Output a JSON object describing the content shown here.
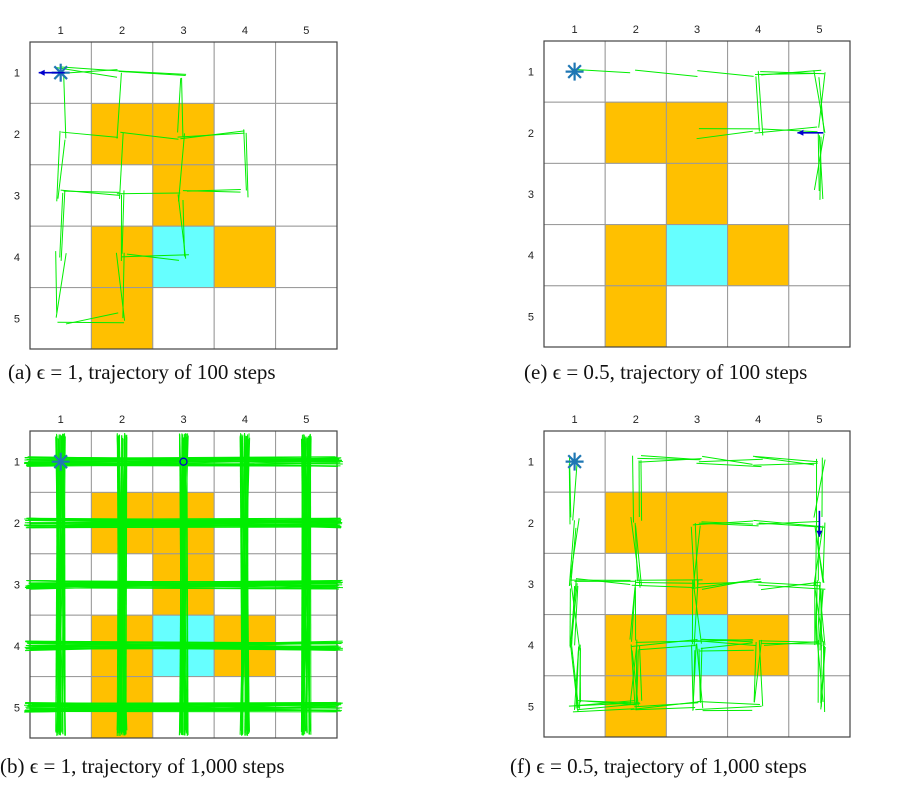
{
  "panels": [
    {
      "id": "a",
      "caption_label": "(a)",
      "caption_text": "ϵ = 1, trajectory of 100 steps",
      "col_labels": [
        "1",
        "2",
        "3",
        "4",
        "5"
      ],
      "row_labels": [
        "1",
        "2",
        "3",
        "4",
        "5"
      ],
      "colors": {
        "obstacle": "#FFC000",
        "goal": "#66FFFF",
        "trajectory": "#00EE00",
        "marker": "#1F77B4",
        "arrow": "#0000CC"
      },
      "grid": {
        "obstacles": [
          [
            2,
            2
          ],
          [
            2,
            3
          ],
          [
            3,
            3
          ],
          [
            4,
            2
          ],
          [
            4,
            4
          ],
          [
            5,
            2
          ]
        ],
        "goal": [
          4,
          3
        ],
        "start": [
          1,
          1
        ],
        "end_marker": "arrow",
        "end_cell": [
          1,
          1
        ],
        "end_direction": "left"
      },
      "trajectory_density": "sparse",
      "trajectory_path": [
        [
          1,
          1
        ],
        [
          1,
          2
        ],
        [
          2,
          2
        ],
        [
          3,
          2
        ],
        [
          4,
          2
        ],
        [
          5,
          2
        ],
        [
          5,
          1
        ],
        [
          4,
          1
        ],
        [
          3,
          1
        ],
        [
          2,
          1
        ],
        [
          2,
          2
        ],
        [
          2,
          3
        ],
        [
          2,
          4
        ],
        [
          3,
          4
        ],
        [
          3,
          3
        ],
        [
          4,
          3
        ],
        [
          4,
          2
        ],
        [
          3,
          2
        ],
        [
          3,
          1
        ],
        [
          2,
          1
        ],
        [
          1,
          1
        ],
        [
          1,
          2
        ],
        [
          1,
          3
        ],
        [
          2,
          3
        ],
        [
          3,
          3
        ],
        [
          4,
          3
        ],
        [
          4,
          2
        ],
        [
          5,
          2
        ],
        [
          5,
          1
        ],
        [
          4,
          1
        ],
        [
          3,
          1
        ],
        [
          3,
          2
        ],
        [
          3,
          3
        ],
        [
          3,
          4
        ],
        [
          2,
          4
        ],
        [
          2,
          3
        ],
        [
          1,
          3
        ],
        [
          1,
          2
        ],
        [
          1,
          1
        ]
      ]
    },
    {
      "id": "e",
      "caption_label": "(e)",
      "caption_text": "ϵ = 0.5, trajectory of 100 steps",
      "col_labels": [
        "1",
        "2",
        "3",
        "4",
        "5"
      ],
      "row_labels": [
        "1",
        "2",
        "3",
        "4",
        "5"
      ],
      "colors": {
        "obstacle": "#FFC000",
        "goal": "#66FFFF",
        "trajectory": "#00EE00",
        "marker": "#1F77B4",
        "arrow": "#0000CC"
      },
      "grid": {
        "obstacles": [
          [
            2,
            2
          ],
          [
            2,
            3
          ],
          [
            3,
            3
          ],
          [
            4,
            2
          ],
          [
            4,
            4
          ],
          [
            5,
            2
          ]
        ],
        "goal": [
          4,
          3
        ],
        "start": [
          1,
          1
        ],
        "end_marker": "arrow",
        "end_cell": [
          2,
          5
        ],
        "end_direction": "left"
      },
      "trajectory_density": "sparse",
      "trajectory_path": [
        [
          1,
          1
        ],
        [
          1,
          2
        ],
        [
          1,
          3
        ],
        [
          1,
          4
        ],
        [
          1,
          5
        ],
        [
          2,
          5
        ],
        [
          3,
          5
        ],
        [
          2,
          5
        ],
        [
          1,
          5
        ],
        [
          1,
          4
        ],
        [
          2,
          4
        ],
        [
          2,
          3
        ],
        [
          2,
          4
        ],
        [
          2,
          5
        ],
        [
          1,
          5
        ],
        [
          1,
          4
        ],
        [
          2,
          4
        ],
        [
          2,
          5
        ],
        [
          3,
          5
        ],
        [
          2,
          5
        ]
      ]
    },
    {
      "id": "b",
      "caption_label": "(b)",
      "caption_text": "ϵ = 1, trajectory of 1,000 steps",
      "col_labels": [
        "1",
        "2",
        "3",
        "4",
        "5"
      ],
      "row_labels": [
        "1",
        "2",
        "3",
        "4",
        "5"
      ],
      "colors": {
        "obstacle": "#FFC000",
        "goal": "#66FFFF",
        "trajectory": "#00EE00",
        "marker": "#1F77B4",
        "arrow": "#0000CC"
      },
      "grid": {
        "obstacles": [
          [
            2,
            2
          ],
          [
            2,
            3
          ],
          [
            3,
            3
          ],
          [
            4,
            2
          ],
          [
            4,
            4
          ],
          [
            5,
            2
          ]
        ],
        "goal": [
          4,
          3
        ],
        "start": [
          1,
          1
        ],
        "end_marker": "circle",
        "end_cell": [
          1,
          3
        ],
        "end_direction": "none"
      },
      "trajectory_density": "dense",
      "trajectory_path": []
    },
    {
      "id": "f",
      "caption_label": "(f)",
      "caption_text": "ϵ = 0.5, trajectory of 1,000 steps",
      "col_labels": [
        "1",
        "2",
        "3",
        "4",
        "5"
      ],
      "row_labels": [
        "1",
        "2",
        "3",
        "4",
        "5"
      ],
      "colors": {
        "obstacle": "#FFC000",
        "goal": "#66FFFF",
        "trajectory": "#00EE00",
        "marker": "#1F77B4",
        "arrow": "#0000CC"
      },
      "grid": {
        "obstacles": [
          [
            2,
            2
          ],
          [
            2,
            3
          ],
          [
            3,
            3
          ],
          [
            4,
            2
          ],
          [
            4,
            4
          ],
          [
            5,
            2
          ]
        ],
        "goal": [
          4,
          3
        ],
        "start": [
          1,
          1
        ],
        "end_marker": "arrow",
        "end_cell": [
          2,
          5
        ],
        "end_direction": "down"
      },
      "trajectory_density": "medium",
      "trajectory_path": [
        [
          1,
          1
        ],
        [
          2,
          1
        ],
        [
          3,
          1
        ],
        [
          4,
          1
        ],
        [
          5,
          1
        ],
        [
          5,
          2
        ],
        [
          4,
          2
        ],
        [
          3,
          2
        ],
        [
          2,
          2
        ],
        [
          1,
          2
        ],
        [
          1,
          3
        ],
        [
          1,
          4
        ],
        [
          1,
          5
        ],
        [
          2,
          5
        ],
        [
          3,
          5
        ],
        [
          4,
          5
        ],
        [
          5,
          5
        ],
        [
          4,
          5
        ],
        [
          3,
          5
        ],
        [
          2,
          5
        ],
        [
          2,
          4
        ],
        [
          2,
          3
        ],
        [
          3,
          3
        ],
        [
          4,
          3
        ],
        [
          5,
          3
        ],
        [
          4,
          3
        ],
        [
          4,
          4
        ],
        [
          4,
          5
        ],
        [
          3,
          5
        ],
        [
          3,
          4
        ],
        [
          3,
          3
        ],
        [
          3,
          2
        ],
        [
          3,
          1
        ],
        [
          4,
          1
        ],
        [
          5,
          1
        ],
        [
          5,
          2
        ],
        [
          5,
          3
        ],
        [
          5,
          4
        ],
        [
          4,
          4
        ],
        [
          4,
          3
        ],
        [
          4,
          2
        ],
        [
          5,
          2
        ]
      ]
    }
  ]
}
